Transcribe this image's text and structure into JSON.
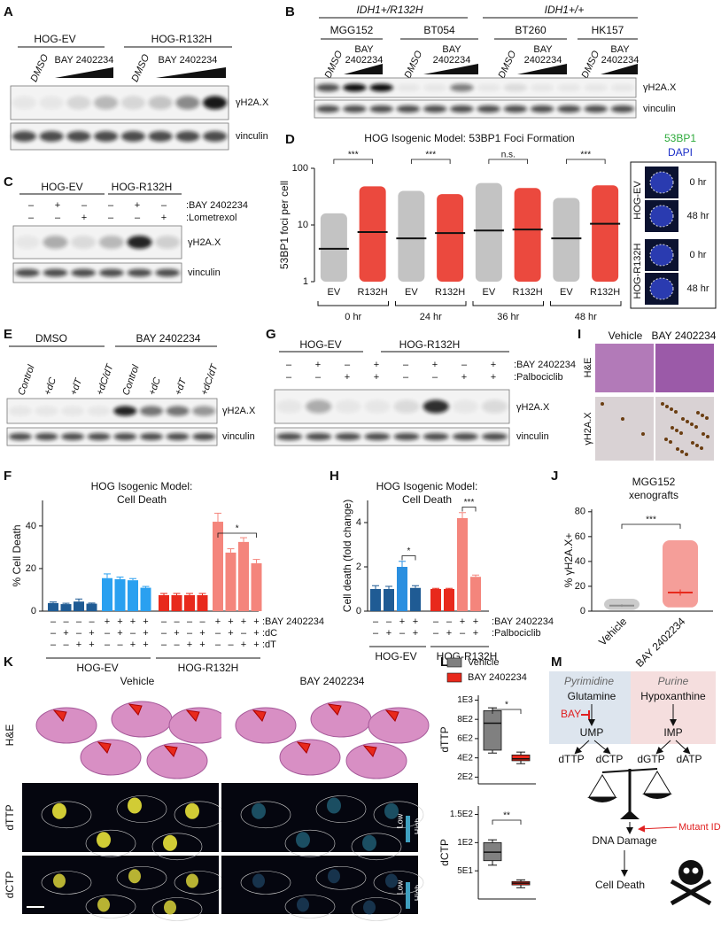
{
  "panel_labels": [
    "A",
    "B",
    "C",
    "D",
    "E",
    "F",
    "G",
    "H",
    "I",
    "J",
    "K",
    "L",
    "M"
  ],
  "A": {
    "groups": [
      "HOG-EV",
      "HOG-R132H"
    ],
    "lanes": [
      "DMSO",
      "BAY 2402234"
    ],
    "blots": [
      "γH2A.X",
      "vinculin"
    ]
  },
  "B": {
    "genotypes": [
      "IDH1+/R132H",
      "IDH1+/+"
    ],
    "lines": [
      "MGG152",
      "BT054",
      "BT260",
      "HK157"
    ],
    "lanes": [
      "DMSO",
      [
        "BAY",
        "2402234"
      ]
    ],
    "blots": [
      "γH2A.X",
      "vinculin"
    ]
  },
  "C": {
    "groups": [
      "HOG-EV",
      "HOG-R132H"
    ],
    "conditions": [
      {
        "name": ":BAY 2402234",
        "signs": [
          "–",
          "+",
          "–",
          "–",
          "+",
          "–"
        ]
      },
      {
        "name": ":Lometrexol",
        "signs": [
          "–",
          "–",
          "+",
          "–",
          "–",
          "+"
        ]
      }
    ],
    "blots": [
      "γH2A.X",
      "vinculin"
    ]
  },
  "D": {
    "title": "HOG Isogenic Model: 53BP1 Foci Formation",
    "ylabel": "53BP1 foci per cell",
    "log": true,
    "ylim": [
      1,
      100
    ],
    "yticks": [
      1,
      10,
      100
    ],
    "categories": [
      "EV",
      "R132H",
      "EV",
      "R132H",
      "EV",
      "R132H",
      "EV",
      "R132H"
    ],
    "timepoints": [
      "0 hr",
      "24 hr",
      "36 hr",
      "48 hr"
    ],
    "means": [
      3.8,
      7.5,
      5.8,
      7.2,
      8,
      8.3,
      5.8,
      10.5
    ],
    "max": [
      16,
      48,
      40,
      35,
      55,
      45,
      30,
      50
    ],
    "colors": [
      "#b9b9b9",
      "#e8291c"
    ],
    "significance": [
      "***",
      "***",
      "n.s.",
      "***"
    ],
    "inset": {
      "stains": [
        "53BP1",
        "DAPI"
      ],
      "groups": [
        "HOG-EV",
        "HOG-R132H"
      ],
      "times": [
        "0 hr",
        "48 hr"
      ]
    }
  },
  "E": {
    "groups": [
      "DMSO",
      "BAY 2402234"
    ],
    "lanes": [
      "Control",
      "+dC",
      "+dT",
      "+dC/dT"
    ],
    "blots": [
      "γH2A.X",
      "vinculin"
    ]
  },
  "F": {
    "title": [
      "HOG Isogenic Model:",
      "Cell Death"
    ],
    "ylabel": "% Cell Death",
    "ylim": [
      0,
      52
    ],
    "yticks": [
      0,
      20,
      40
    ],
    "values": [
      3.8,
      3.3,
      4.5,
      3.5,
      15.5,
      15,
      14.5,
      11,
      7.5,
      7.5,
      7.5,
      7.5,
      42,
      27.5,
      32.5,
      22.5
    ],
    "errors": [
      0.5,
      0.4,
      1.2,
      0.3,
      2,
      1,
      0.8,
      0.6,
      0.8,
      0.8,
      0.8,
      0.8,
      4,
      1.8,
      2,
      1.8
    ],
    "colors": [
      "#1f5b94",
      "#1f5b94",
      "#1f5b94",
      "#1f5b94",
      "#2aa0f0",
      "#2aa0f0",
      "#2aa0f0",
      "#2aa0f0",
      "#e8291c",
      "#e8291c",
      "#e8291c",
      "#e8291c",
      "#f4857c",
      "#f4857c",
      "#f4857c",
      "#f4857c"
    ],
    "conditions": [
      {
        "name": ":BAY 2402234",
        "signs": [
          "–",
          "–",
          "–",
          "–",
          "+",
          "+",
          "+",
          "+",
          "–",
          "–",
          "–",
          "–",
          "+",
          "+",
          "+",
          "+"
        ]
      },
      {
        "name": ":dC",
        "signs": [
          "–",
          "+",
          "–",
          "+",
          "–",
          "+",
          "–",
          "+",
          "–",
          "+",
          "–",
          "+",
          "–",
          "+",
          "–",
          "+"
        ]
      },
      {
        "name": ":dT",
        "signs": [
          "–",
          "–",
          "+",
          "+",
          "–",
          "–",
          "+",
          "+",
          "–",
          "–",
          "+",
          "+",
          "–",
          "–",
          "+",
          "+"
        ]
      }
    ],
    "groups": [
      "HOG-EV",
      "HOG-R132H"
    ],
    "significance": "*"
  },
  "G": {
    "groups": [
      "HOG-EV",
      "HOG-R132H"
    ],
    "conditions": [
      {
        "name": ":BAY 2402234",
        "signs": [
          "–",
          "+",
          "–",
          "+",
          "–",
          "+",
          "–",
          "+"
        ]
      },
      {
        "name": ":Palbociclib",
        "signs": [
          "–",
          "–",
          "+",
          "+",
          "–",
          "–",
          "+",
          "+"
        ]
      }
    ],
    "blots": [
      "γH2A.X",
      "vinculin"
    ]
  },
  "H": {
    "title": [
      "HOG Isogenic Model:",
      "Cell Death"
    ],
    "ylabel": "Cell death (fold change)",
    "ylim": [
      0,
      5
    ],
    "yticks": [
      0,
      2,
      4
    ],
    "values": [
      1.0,
      1.0,
      2.0,
      1.05,
      1.0,
      1.0,
      4.2,
      1.55
    ],
    "errors": [
      0.15,
      0.12,
      0.25,
      0.1,
      0.03,
      0.03,
      0.25,
      0.08
    ],
    "colors": [
      "#1f5b94",
      "#1f5b94",
      "#2a8fe0",
      "#1f5b94",
      "#e8291c",
      "#e8291c",
      "#f4857c",
      "#f4857c"
    ],
    "conditions": [
      {
        "name": ":BAY 2402234",
        "signs": [
          "–",
          "–",
          "+",
          "+",
          "–",
          "–",
          "+",
          "+"
        ]
      },
      {
        "name": ":Palbociclib",
        "signs": [
          "–",
          "+",
          "–",
          "+",
          "–",
          "+",
          "–",
          "+"
        ]
      }
    ],
    "groups": [
      "HOG-EV",
      "HOG-R132H"
    ],
    "significance": [
      "*",
      "***"
    ]
  },
  "I": {
    "columns": [
      "Vehicle",
      "BAY 2402234"
    ],
    "rows": [
      "H&E",
      "γH2A.X"
    ]
  },
  "J": {
    "title": [
      "MGG152",
      "xenografts"
    ],
    "ylabel": "% γH2A.X+",
    "ylim": [
      0,
      82
    ],
    "yticks": [
      0,
      20,
      40,
      60,
      80
    ],
    "categories": [
      "Vehicle",
      "BAY 2402234"
    ],
    "means": [
      4.5,
      15
    ],
    "errors": [
      1,
      2.5
    ],
    "min": [
      1,
      3
    ],
    "max": [
      10,
      57
    ],
    "colors": [
      "#8c8c8c",
      "#e8291c"
    ],
    "significance": "***"
  },
  "K": {
    "columns": [
      "Vehicle",
      "BAY 2402234"
    ],
    "rows": [
      "H&E",
      "dTTP",
      "dCTP"
    ],
    "colorbar": [
      "Low",
      "High"
    ]
  },
  "L": {
    "legend": [
      "Vehicle",
      "BAY 2402234"
    ],
    "colors": [
      "#808080",
      "#e8291c"
    ],
    "plots": [
      {
        "ylabel": "dTTP",
        "ylim": [
          130,
          1050
        ],
        "yticks": [
          {
            "value": 1000,
            "label": "1E3"
          },
          {
            "value": 800,
            "label": "8E2"
          },
          {
            "value": 600,
            "label": "6E2"
          },
          {
            "value": 400,
            "label": "4E2"
          },
          {
            "value": 200,
            "label": "2E2"
          }
        ],
        "boxes": [
          [
            450,
            480,
            760,
            890,
            920
          ],
          [
            340,
            370,
            390,
            430,
            460
          ]
        ],
        "significance": "*"
      },
      {
        "ylabel": "dCTP",
        "ylim": [
          0,
          165
        ],
        "yticks": [
          {
            "value": 150,
            "label": "1.5E2"
          },
          {
            "value": 100,
            "label": "1E2"
          },
          {
            "value": 50,
            "label": "5E1"
          }
        ],
        "boxes": [
          [
            60,
            68,
            83,
            100,
            105
          ],
          [
            20,
            25,
            28,
            31,
            34
          ]
        ],
        "significance": "**"
      }
    ]
  },
  "M": {
    "categories": [
      "Pyrimidine",
      "Purine"
    ],
    "precursors": [
      "Glutamine",
      "Hypoxanthine"
    ],
    "inhibitor": "BAY",
    "intermediates": [
      "UMP",
      "IMP"
    ],
    "nucleotides": [
      "dTTP",
      "dCTP",
      "dGTP",
      "dATP"
    ],
    "mutation": "Mutant IDH",
    "damage": "DNA Damage",
    "outcome": "Cell Death"
  }
}
